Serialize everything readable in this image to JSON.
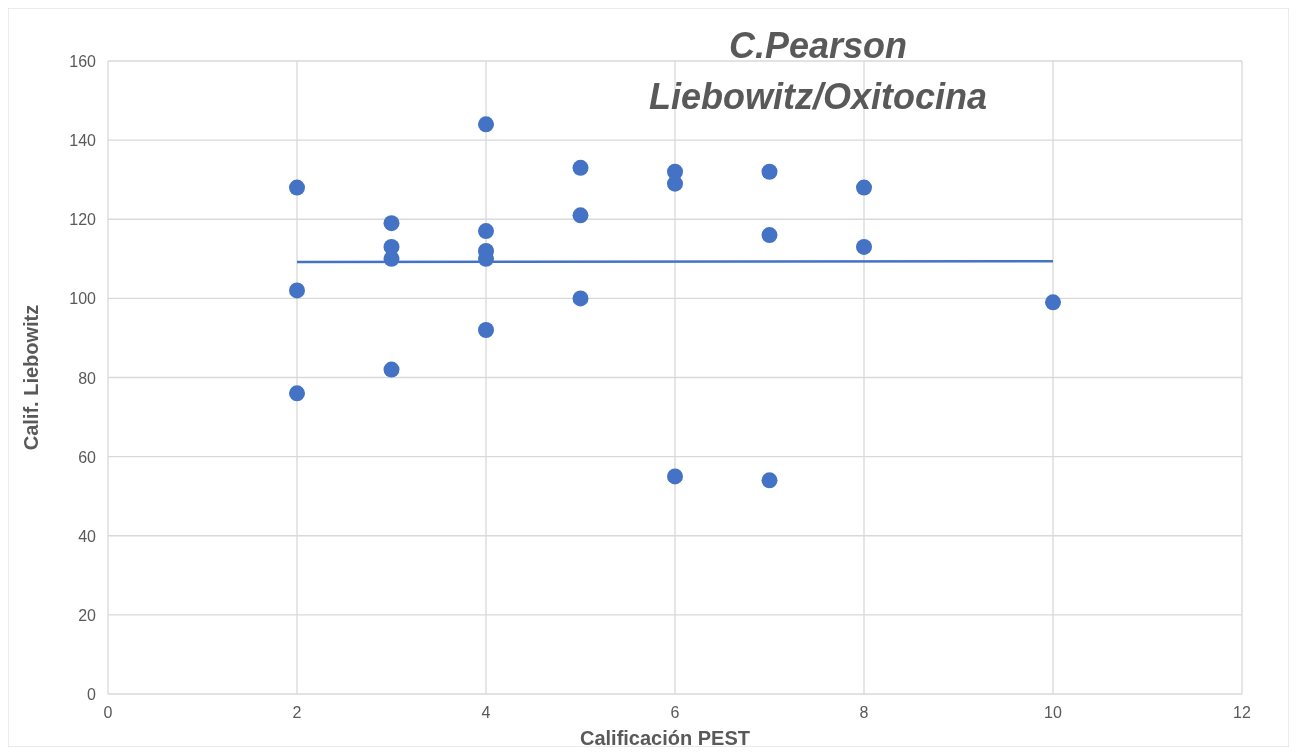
{
  "chart_data": {
    "type": "scatter",
    "title": "C.Pearson\nLiebowitz/Oxitocina",
    "xlabel": "Calificación PEST",
    "ylabel": "Calif. Liebowitz",
    "xlim": [
      0,
      12
    ],
    "xticks": [
      0,
      2,
      4,
      6,
      8,
      10,
      12
    ],
    "ylim": [
      0,
      160
    ],
    "yticks": [
      0,
      20,
      40,
      60,
      80,
      100,
      120,
      140,
      160
    ],
    "grid": true,
    "series": [
      {
        "color": "#4472c4",
        "marker": "circle",
        "x": [
          2,
          2,
          2,
          3,
          3,
          3,
          3,
          4,
          4,
          4,
          4,
          4,
          5,
          5,
          5,
          6,
          6,
          6,
          7,
          7,
          7,
          8,
          8,
          10
        ],
        "values": [
          128,
          102,
          76,
          119,
          113,
          110,
          82,
          144,
          117,
          112,
          110,
          92,
          133,
          121,
          100,
          132,
          129,
          55,
          132,
          116,
          54,
          128,
          113,
          99
        ]
      },
      {
        "type": "line",
        "color": "#4472c4",
        "x": [
          2,
          10
        ],
        "values": [
          109.2,
          109.4
        ]
      }
    ]
  }
}
